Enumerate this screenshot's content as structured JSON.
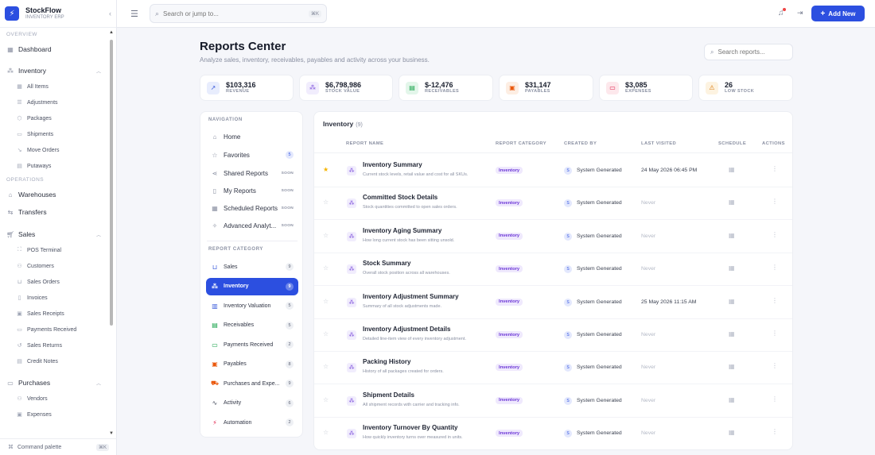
{
  "brand": {
    "name": "StockFlow",
    "subtitle": "INVENTORY ERP"
  },
  "sidebar": {
    "sections": [
      {
        "label": "OVERVIEW"
      },
      {
        "label": "OPERATIONS"
      }
    ],
    "dashboard": "Dashboard",
    "inventory": {
      "label": "Inventory",
      "items": [
        "All Items",
        "Adjustments",
        "Packages",
        "Shipments",
        "Move Orders",
        "Putaways"
      ]
    },
    "warehouses": "Warehouses",
    "transfers": "Transfers",
    "sales": {
      "label": "Sales",
      "items": [
        "POS Terminal",
        "Customers",
        "Sales Orders",
        "Invoices",
        "Sales Receipts",
        "Payments Received",
        "Sales Returns",
        "Credit Notes"
      ]
    },
    "purchases": {
      "label": "Purchases",
      "items": [
        "Vendors",
        "Expenses"
      ]
    },
    "command_palette": "Command palette",
    "command_kbd": "⌘K"
  },
  "topbar": {
    "search_placeholder": "Search or jump to...",
    "search_kbd": "⌘K",
    "add_new": "Add New"
  },
  "page": {
    "title": "Reports Center",
    "subtitle": "Analyze sales, inventory, receivables, payables and activity across your business.",
    "search_placeholder": "Search reports..."
  },
  "stats": [
    {
      "value": "$103,316",
      "label": "REVENUE",
      "icon": "trend-icon",
      "color": "#3b5bdb",
      "bg": "#e8edfd"
    },
    {
      "value": "$6,798,986",
      "label": "STOCK VALUE",
      "icon": "boxes-icon",
      "color": "#7c4ddb",
      "bg": "#f1edfd"
    },
    {
      "value": "$-12,476",
      "label": "RECEIVABLES",
      "icon": "document-icon",
      "color": "#16a34a",
      "bg": "#e3f6ea"
    },
    {
      "value": "$31,147",
      "label": "PAYABLES",
      "icon": "receipt-icon",
      "color": "#ea580c",
      "bg": "#fdeee3"
    },
    {
      "value": "$3,085",
      "label": "EXPENSES",
      "icon": "card-icon",
      "color": "#e11d48",
      "bg": "#fde8ec"
    },
    {
      "value": "26",
      "label": "LOW STOCK",
      "icon": "warning-icon",
      "color": "#d97706",
      "bg": "#fdf3e1"
    }
  ],
  "navigation": {
    "section_label": "NAVIGATION",
    "soon_label": "SOON",
    "items": [
      {
        "label": "Home"
      },
      {
        "label": "Favorites",
        "count": "5"
      },
      {
        "label": "Shared Reports"
      },
      {
        "label": "My Reports"
      },
      {
        "label": "Scheduled Reports"
      },
      {
        "label": "Advanced Analyt..."
      }
    ]
  },
  "categories": {
    "section_label": "REPORT CATEGORY",
    "items": [
      {
        "label": "Sales",
        "count": "9"
      },
      {
        "label": "Inventory",
        "count": "9"
      },
      {
        "label": "Inventory Valuation",
        "count": "5"
      },
      {
        "label": "Receivables",
        "count": "5"
      },
      {
        "label": "Payments Received",
        "count": "2"
      },
      {
        "label": "Payables",
        "count": "8"
      },
      {
        "label": "Purchases and Expe...",
        "count": "9"
      },
      {
        "label": "Activity",
        "count": "6"
      },
      {
        "label": "Automation",
        "count": "2"
      }
    ]
  },
  "table": {
    "title": "Inventory",
    "count": "(9)",
    "headers": {
      "name": "REPORT NAME",
      "category": "REPORT CATEGORY",
      "created_by": "CREATED BY",
      "last_visited": "LAST VISITED",
      "schedule": "SCHEDULE",
      "actions": "ACTIONS"
    },
    "rows": [
      {
        "name": "Inventory Summary",
        "desc": "Current stock levels, retail value and cost for all SKUs.",
        "category": "Inventory",
        "avatar": "S",
        "creator": "System Generated",
        "visited": "24 May 2026 06:45 PM",
        "favorite": true
      },
      {
        "name": "Committed Stock Details",
        "desc": "Stock quantities committed to open sales orders.",
        "category": "Inventory",
        "avatar": "S",
        "creator": "System Generated",
        "visited": "Never",
        "favorite": false
      },
      {
        "name": "Inventory Aging Summary",
        "desc": "How long current stock has been sitting unsold.",
        "category": "Inventory",
        "avatar": "S",
        "creator": "System Generated",
        "visited": "Never",
        "favorite": false
      },
      {
        "name": "Stock Summary",
        "desc": "Overall stock position across all warehouses.",
        "category": "Inventory",
        "avatar": "S",
        "creator": "System Generated",
        "visited": "Never",
        "favorite": false
      },
      {
        "name": "Inventory Adjustment Summary",
        "desc": "Summary of all stock adjustments made.",
        "category": "Inventory",
        "avatar": "S",
        "creator": "System Generated",
        "visited": "25 May 2026 11:15 AM",
        "favorite": false
      },
      {
        "name": "Inventory Adjustment Details",
        "desc": "Detailed line-item view of every inventory adjustment.",
        "category": "Inventory",
        "avatar": "S",
        "creator": "System Generated",
        "visited": "Never",
        "favorite": false
      },
      {
        "name": "Packing History",
        "desc": "History of all packages created for orders.",
        "category": "Inventory",
        "avatar": "S",
        "creator": "System Generated",
        "visited": "Never",
        "favorite": false
      },
      {
        "name": "Shipment Details",
        "desc": "All shipment records with carrier and tracking info.",
        "category": "Inventory",
        "avatar": "S",
        "creator": "System Generated",
        "visited": "Never",
        "favorite": false
      },
      {
        "name": "Inventory Turnover By Quantity",
        "desc": "How quickly inventory turns over measured in units.",
        "category": "Inventory",
        "avatar": "S",
        "creator": "System Generated",
        "visited": "Never",
        "favorite": false
      }
    ]
  }
}
